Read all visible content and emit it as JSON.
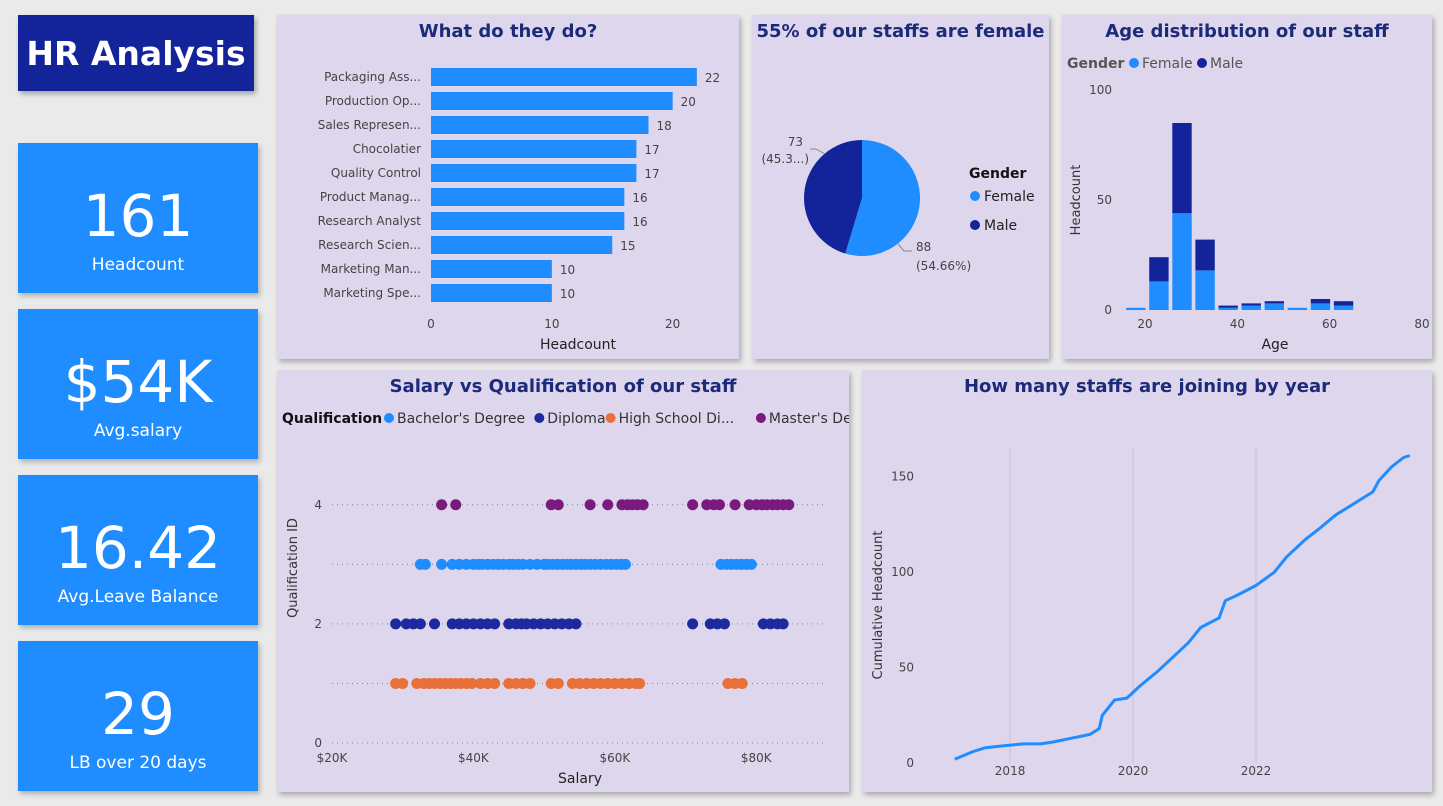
{
  "header": {
    "title": "HR Analysis"
  },
  "kpis": [
    {
      "value": "161",
      "label": "Headcount"
    },
    {
      "value": "$54K",
      "label": "Avg.salary"
    },
    {
      "value": "16.42",
      "label": "Avg.Leave Balance"
    },
    {
      "value": "29",
      "label": "LB over 20 days"
    }
  ],
  "colors": {
    "female": "#1f8cff",
    "male": "#13239a",
    "bachelor": "#1f8cff",
    "diploma": "#1c2a9e",
    "highschool": "#e8703a",
    "master": "#7a1a7e",
    "line": "#1f8cff"
  },
  "jobs_chart": {
    "title": "What do they do?",
    "type": "bar",
    "categories": [
      "Packaging Ass...",
      "Production Op...",
      "Sales Represen...",
      "Chocolatier",
      "Quality Control",
      "Product Manag...",
      "Research Analyst",
      "Research Scien...",
      "Marketing Man...",
      "Marketing Spe..."
    ],
    "values": [
      22,
      20,
      18,
      17,
      17,
      16,
      16,
      15,
      10,
      10
    ],
    "xticks": [
      0,
      10,
      20
    ],
    "xlabel": "Headcount",
    "xlim": [
      0,
      24
    ]
  },
  "gender_chart": {
    "title": "55% of our staffs are female",
    "type": "pie",
    "legend_title": "Gender",
    "slices": [
      {
        "name": "Female",
        "value": 88,
        "value_label": "88",
        "pct_label": "(54.66%)"
      },
      {
        "name": "Male",
        "value": 73,
        "value_label": "73",
        "pct_label": "(45.3...)"
      }
    ]
  },
  "age_chart": {
    "title": "Age distribution of our staff",
    "type": "bar",
    "legend_title": "Gender",
    "series_names": [
      "Female",
      "Male"
    ],
    "bins": [
      {
        "age": 18,
        "female": 1,
        "male": 0
      },
      {
        "age": 23,
        "female": 13,
        "male": 11
      },
      {
        "age": 28,
        "female": 44,
        "male": 41
      },
      {
        "age": 33,
        "female": 18,
        "male": 14
      },
      {
        "age": 38,
        "female": 1,
        "male": 1
      },
      {
        "age": 43,
        "female": 2,
        "male": 1
      },
      {
        "age": 48,
        "female": 3,
        "male": 1
      },
      {
        "age": 53,
        "female": 1,
        "male": 0
      },
      {
        "age": 58,
        "female": 3,
        "male": 2
      },
      {
        "age": 63,
        "female": 2,
        "male": 2
      }
    ],
    "xticks": [
      20,
      40,
      60,
      80
    ],
    "yticks": [
      0,
      50,
      100
    ],
    "xlabel": "Age",
    "ylabel": "Headcount",
    "xlim": [
      15,
      80
    ],
    "ylim": [
      0,
      100
    ]
  },
  "salary_chart": {
    "title": "Salary vs Qualification of our staff",
    "type": "scatter",
    "legend_title": "Qualification",
    "series": [
      {
        "name": "Bachelor's Degree",
        "y": 3,
        "x": [
          32.5,
          33.2,
          35.5,
          37,
          38,
          39,
          40,
          40.7,
          41.2,
          42,
          42.8,
          43.5,
          44.2,
          45,
          45.6,
          46.3,
          47,
          48,
          49,
          50,
          50.5,
          51.2,
          51.9,
          52.6,
          53.2,
          53.8,
          54.5,
          55.2,
          55.8,
          56.5,
          57.2,
          58,
          58.8,
          59.5,
          60.2,
          60.9,
          61.5,
          75,
          75.8,
          76.5,
          77.2,
          77.9,
          78.6,
          79.3
        ]
      },
      {
        "name": "Diploma",
        "y": 2,
        "x": [
          29,
          30.5,
          31.5,
          32.5,
          34.5,
          37,
          38,
          39,
          40,
          41,
          42,
          43,
          45,
          46,
          46.8,
          47.5,
          48.5,
          49.5,
          50.5,
          51.5,
          52.5,
          53.5,
          54.5,
          71,
          73.5,
          74.5,
          75.5,
          81,
          82,
          83,
          83.8
        ]
      },
      {
        "name": "High School Di...",
        "y": 1,
        "x": [
          29,
          30,
          32,
          33,
          33.8,
          34.5,
          35.3,
          36,
          36.8,
          37.5,
          38.2,
          39,
          39.8,
          41,
          42,
          43,
          45,
          46,
          47,
          48,
          51,
          52,
          54,
          55,
          56,
          57,
          58,
          59,
          60,
          61,
          62,
          63,
          63.5,
          76,
          77,
          78
        ]
      },
      {
        "name": "Master's De...",
        "y": 4,
        "x": [
          35.5,
          37.5,
          51,
          52,
          56.5,
          59,
          61,
          61.8,
          62.5,
          63.2,
          64,
          71,
          73,
          74,
          74.8,
          77,
          79,
          80,
          80.8,
          81.5,
          82.3,
          83,
          83.8,
          84.6
        ]
      }
    ],
    "xticks": [
      "$20K",
      "$40K",
      "$60K",
      "$80K"
    ],
    "xtick_values": [
      20,
      40,
      60,
      80
    ],
    "yticks": [
      0,
      2,
      4
    ],
    "xlabel": "Salary",
    "ylabel": "Qualification ID",
    "xlim": [
      20,
      90
    ],
    "ylim": [
      0,
      4.5
    ]
  },
  "joining_chart": {
    "title": "How many staffs are joining by year",
    "type": "line",
    "points": [
      [
        2017.1,
        2
      ],
      [
        2017.4,
        6
      ],
      [
        2017.6,
        8
      ],
      [
        2017.9,
        9
      ],
      [
        2018.2,
        10
      ],
      [
        2018.5,
        10
      ],
      [
        2018.7,
        11
      ],
      [
        2019.0,
        13
      ],
      [
        2019.3,
        15
      ],
      [
        2019.45,
        18
      ],
      [
        2019.5,
        25
      ],
      [
        2019.7,
        33
      ],
      [
        2019.9,
        34
      ],
      [
        2020.1,
        40
      ],
      [
        2020.4,
        48
      ],
      [
        2020.7,
        57
      ],
      [
        2020.9,
        63
      ],
      [
        2021.1,
        71
      ],
      [
        2021.4,
        76
      ],
      [
        2021.5,
        85
      ],
      [
        2021.7,
        88
      ],
      [
        2022.0,
        93
      ],
      [
        2022.3,
        100
      ],
      [
        2022.5,
        108
      ],
      [
        2022.8,
        117
      ],
      [
        2023.0,
        122
      ],
      [
        2023.3,
        130
      ],
      [
        2023.6,
        136
      ],
      [
        2023.9,
        142
      ],
      [
        2024.0,
        148
      ],
      [
        2024.2,
        155
      ],
      [
        2024.4,
        160
      ],
      [
        2024.5,
        161
      ]
    ],
    "xticks": [
      2018,
      2020,
      2022
    ],
    "yticks": [
      0,
      50,
      100,
      150
    ],
    "ylabel": "Cumulative Headcount",
    "xlim": [
      2016.6,
      2024.7
    ],
    "ylim": [
      0,
      165
    ]
  }
}
